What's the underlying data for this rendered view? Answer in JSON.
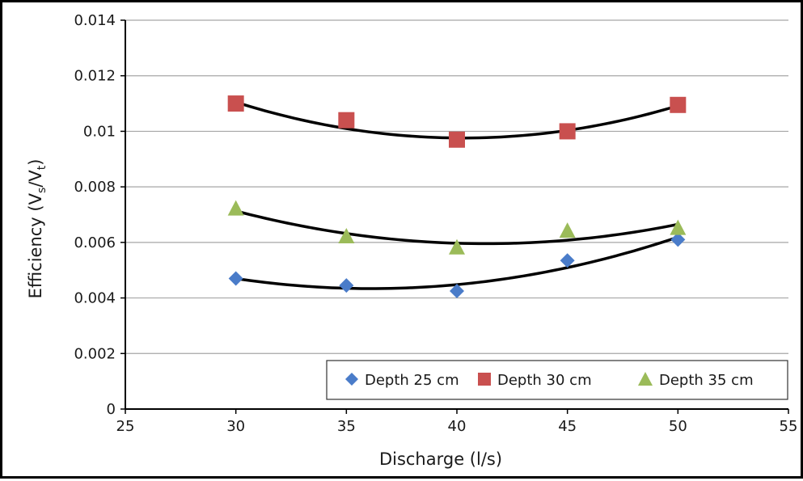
{
  "chart_data": {
    "type": "scatter",
    "title": "",
    "xlabel": "Discharge (l/s)",
    "ylabel": {
      "main": "Efficiency (V",
      "sub1": "s",
      "mid": "/V",
      "sub2": "t",
      "end": ")"
    },
    "xlim": [
      25,
      55
    ],
    "ylim": [
      0,
      0.014
    ],
    "xticks": [
      25,
      30,
      35,
      40,
      45,
      50,
      55
    ],
    "yticks": [
      0,
      0.002,
      0.004,
      0.006,
      0.008,
      0.01,
      0.012,
      0.014
    ],
    "ytick_labels": [
      "0",
      "0.002",
      "0.004",
      "0.006",
      "0.008",
      "0.01",
      "0.012",
      "0.014"
    ],
    "grid": "horizontal",
    "legend_position": "bottom-right",
    "trendline": "polynomial order 2",
    "series": [
      {
        "name": "Depth 25 cm",
        "marker": "diamond",
        "color": "#4a7cc9",
        "x": [
          30,
          35,
          40,
          45,
          50
        ],
        "y": [
          0.0047,
          0.00445,
          0.00425,
          0.00535,
          0.0061
        ],
        "fit": [
          0.0047,
          0.00435,
          0.00448,
          0.00519,
          0.00619
        ]
      },
      {
        "name": "Depth 30 cm",
        "marker": "square",
        "color": "#c9504f",
        "x": [
          30,
          35,
          40,
          45,
          50
        ],
        "y": [
          0.011,
          0.0104,
          0.0097,
          0.01,
          0.01095
        ],
        "fit": [
          0.01105,
          0.01015,
          0.00976,
          0.0099,
          0.01092
        ]
      },
      {
        "name": "Depth 35 cm",
        "marker": "triangle",
        "color": "#9bbb59",
        "x": [
          30,
          35,
          40,
          45,
          50
        ],
        "y": [
          0.0072,
          0.0062,
          0.0058,
          0.0064,
          0.0065
        ],
        "fit": [
          0.00713,
          0.00633,
          0.00597,
          0.00608,
          0.00665
        ]
      }
    ]
  }
}
